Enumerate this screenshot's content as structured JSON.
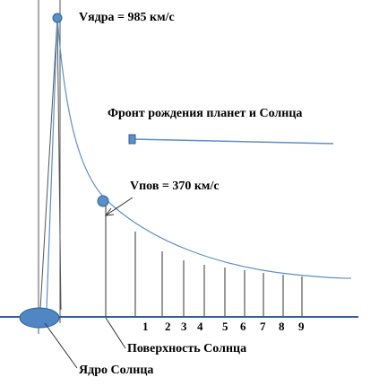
{
  "labels": {
    "v_core": "Vядра = 985 км/с",
    "v_surface": "Vпов = 370 км/с",
    "front": "Фронт рождения планет и Солнца",
    "surface": "Поверхность Солнца",
    "core": "Ядро Солнца"
  },
  "tick_labels": [
    "1",
    "2",
    "3",
    "4",
    "5",
    "6",
    "7",
    "8",
    "9"
  ],
  "colors": {
    "curve": "#5b8fc7",
    "marker_fill": "#5b8fc7",
    "marker_stroke": "#2e5f99",
    "axis": "#2e5f99",
    "core_fill": "#4f86c3",
    "lines": "#333333"
  }
}
